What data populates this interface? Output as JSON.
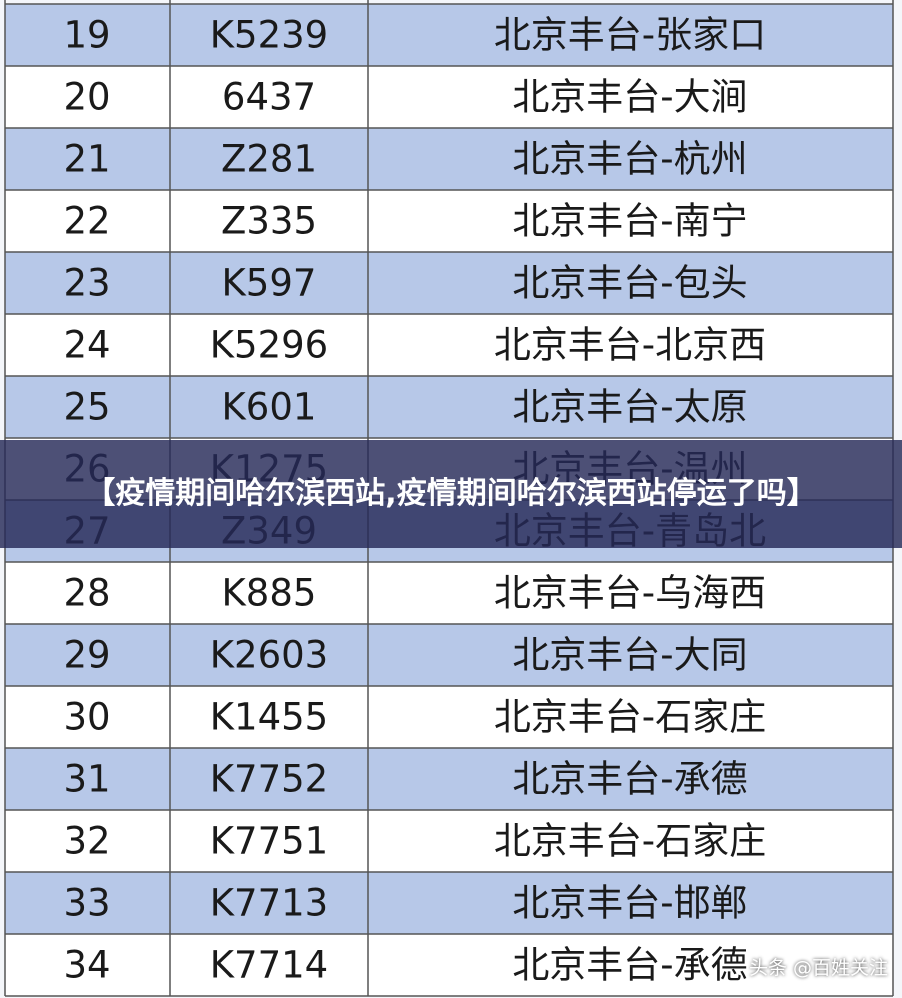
{
  "table": {
    "rows": [
      [
        "19",
        "K5239",
        "北京丰台-张家口"
      ],
      [
        "20",
        "6437",
        "北京丰台-大涧"
      ],
      [
        "21",
        "Z281",
        "北京丰台-杭州"
      ],
      [
        "22",
        "Z335",
        "北京丰台-南宁"
      ],
      [
        "23",
        "K597",
        "北京丰台-包头"
      ],
      [
        "24",
        "K5296",
        "北京丰台-北京西"
      ],
      [
        "25",
        "K601",
        "北京丰台-太原"
      ],
      [
        "26",
        "K1275",
        "北京丰台-温州"
      ],
      [
        "27",
        "Z349",
        "北京丰台-青岛北"
      ],
      [
        "28",
        "K885",
        "北京丰台-乌海西"
      ],
      [
        "29",
        "K2603",
        "北京丰台-大同"
      ],
      [
        "30",
        "K1455",
        "北京丰台-石家庄"
      ],
      [
        "31",
        "K7752",
        "北京丰台-承德"
      ],
      [
        "32",
        "K7751",
        "北京丰台-石家庄"
      ],
      [
        "33",
        "K7713",
        "北京丰台-邯郸"
      ],
      [
        "34",
        "K7714",
        "北京丰台-承德"
      ]
    ]
  },
  "banner": {
    "title": "【疫情期间哈尔滨西站,疫情期间哈尔滨西站停运了吗】"
  },
  "watermark": {
    "text": "头条 @百姓关注"
  }
}
